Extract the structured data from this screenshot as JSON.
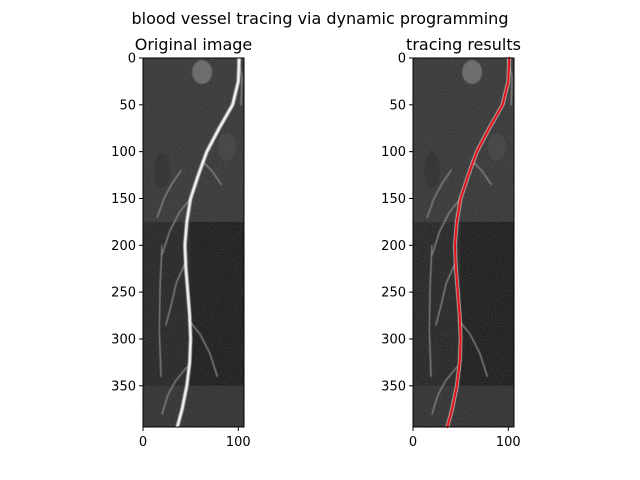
{
  "figure": {
    "suptitle": "blood vessel tracing via dynamic programming"
  },
  "chart_data": [
    {
      "type": "image",
      "title": "Original image",
      "xlabel": "",
      "ylabel": "",
      "xlim": [
        0,
        106
      ],
      "ylim": [
        394,
        0
      ],
      "xticks": [
        0,
        100
      ],
      "yticks": [
        0,
        50,
        100,
        150,
        200,
        250,
        300,
        350
      ],
      "image": "grayscale angiogram of a leg blood vessel",
      "vessel_path_x_at_y": [
        {
          "y": 0,
          "x": 101
        },
        {
          "y": 25,
          "x": 100
        },
        {
          "y": 50,
          "x": 94
        },
        {
          "y": 75,
          "x": 80
        },
        {
          "y": 100,
          "x": 67
        },
        {
          "y": 125,
          "x": 58
        },
        {
          "y": 150,
          "x": 50
        },
        {
          "y": 175,
          "x": 46
        },
        {
          "y": 200,
          "x": 44
        },
        {
          "y": 225,
          "x": 45
        },
        {
          "y": 250,
          "x": 47
        },
        {
          "y": 275,
          "x": 49
        },
        {
          "y": 300,
          "x": 50
        },
        {
          "y": 325,
          "x": 49
        },
        {
          "y": 350,
          "x": 46
        },
        {
          "y": 375,
          "x": 41
        },
        {
          "y": 394,
          "x": 36
        }
      ]
    },
    {
      "type": "image",
      "title": "tracing results",
      "xlabel": "",
      "ylabel": "",
      "xlim": [
        0,
        106
      ],
      "ylim": [
        394,
        0
      ],
      "xticks": [
        0,
        100
      ],
      "yticks": [
        0,
        50,
        100,
        150,
        200,
        250,
        300,
        350
      ],
      "image": "same angiogram with traced vessel overlaid",
      "overlay_color": "#e0141c",
      "traced_path": [
        {
          "y": 0,
          "x": 101
        },
        {
          "y": 25,
          "x": 100
        },
        {
          "y": 50,
          "x": 94
        },
        {
          "y": 75,
          "x": 80
        },
        {
          "y": 100,
          "x": 67
        },
        {
          "y": 125,
          "x": 58
        },
        {
          "y": 150,
          "x": 50
        },
        {
          "y": 175,
          "x": 46
        },
        {
          "y": 200,
          "x": 44
        },
        {
          "y": 225,
          "x": 45
        },
        {
          "y": 250,
          "x": 47
        },
        {
          "y": 275,
          "x": 49
        },
        {
          "y": 300,
          "x": 50
        },
        {
          "y": 325,
          "x": 49
        },
        {
          "y": 350,
          "x": 46
        },
        {
          "y": 375,
          "x": 41
        },
        {
          "y": 394,
          "x": 36
        }
      ]
    }
  ]
}
